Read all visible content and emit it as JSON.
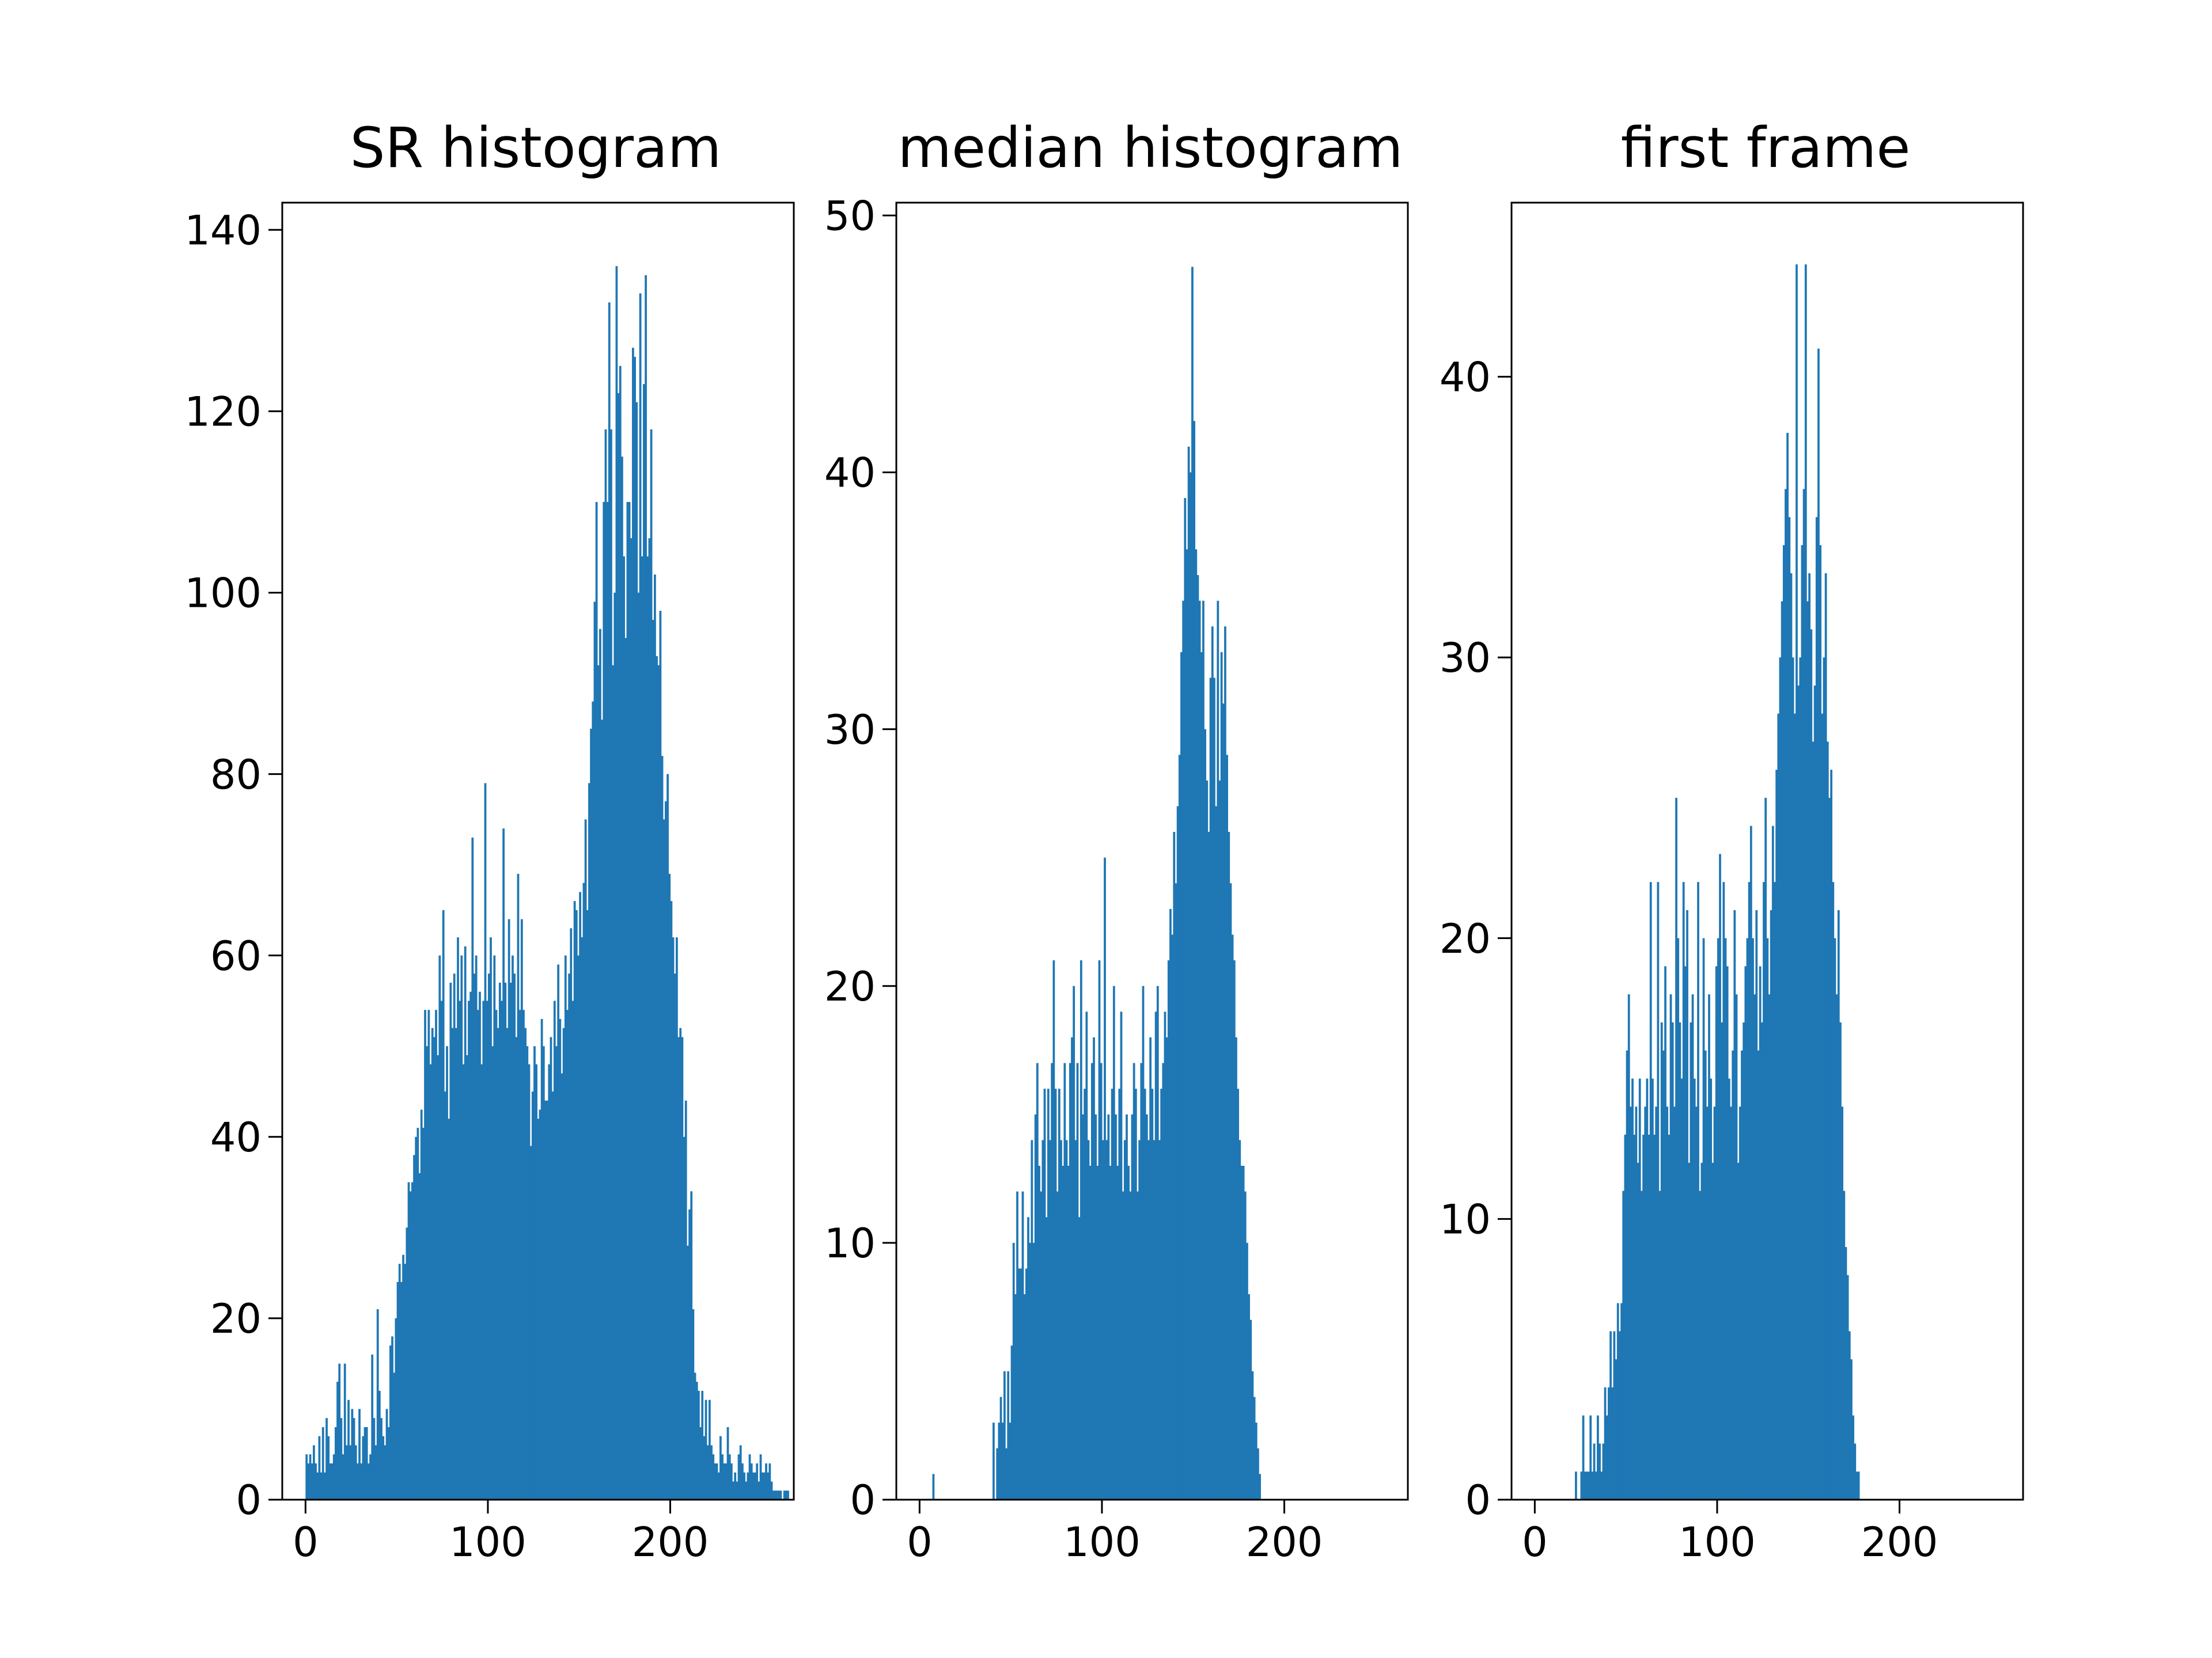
{
  "bar_color": "#1f77b4",
  "chart_data": [
    {
      "type": "bar",
      "title": "SR histogram",
      "xlabel": "",
      "ylabel": "",
      "xlim": [
        -12.75,
        267.75
      ],
      "ylim": [
        0,
        143
      ],
      "xticks": [
        0,
        100,
        200
      ],
      "yticks": [
        0,
        20,
        40,
        60,
        80,
        100,
        120,
        140
      ],
      "bins": {
        "start": 0,
        "width": 1
      },
      "values": [
        5,
        4,
        5,
        4,
        6,
        4,
        3,
        7,
        3,
        8,
        3,
        9,
        7,
        4,
        4,
        5,
        8,
        13,
        15,
        9,
        5,
        15,
        6,
        11,
        6,
        10,
        9,
        6,
        4,
        10,
        4,
        7,
        8,
        8,
        4,
        5,
        16,
        9,
        6,
        21,
        12,
        9,
        7,
        6,
        10,
        8,
        17,
        18,
        14,
        20,
        24,
        26,
        24,
        27,
        26,
        30,
        35,
        34,
        35,
        38,
        40,
        41,
        36,
        43,
        41,
        54,
        50,
        54,
        48,
        52,
        51,
        54,
        49,
        60,
        55,
        65,
        45,
        50,
        42,
        57,
        52,
        58,
        52,
        62,
        55,
        60,
        48,
        61,
        49,
        55,
        56,
        73,
        58,
        60,
        54,
        56,
        48,
        55,
        79,
        55,
        58,
        62,
        50,
        60,
        54,
        52,
        57,
        55,
        74,
        57,
        52,
        64,
        57,
        60,
        58,
        51,
        69,
        54,
        64,
        54,
        52,
        50,
        48,
        39,
        45,
        50,
        48,
        42,
        43,
        53,
        50,
        44,
        44,
        48,
        51,
        45,
        55,
        50,
        59,
        53,
        47,
        52,
        60,
        54,
        58,
        63,
        55,
        66,
        65,
        60,
        67,
        62,
        68,
        75,
        65,
        79,
        85,
        88,
        99,
        110,
        92,
        96,
        86,
        110,
        118,
        110,
        132,
        118,
        92,
        100,
        136,
        122,
        125,
        115,
        104,
        95,
        110,
        110,
        106,
        127,
        126,
        121,
        100,
        133,
        104,
        123,
        135,
        104,
        106,
        118,
        97,
        102,
        93,
        92,
        98,
        82,
        75,
        77,
        80,
        69,
        66,
        62,
        58,
        62,
        51,
        52,
        51,
        40,
        44,
        28,
        32,
        34,
        21,
        14,
        13,
        12,
        8,
        12,
        7,
        11,
        6,
        11,
        6,
        5,
        4,
        4,
        3,
        7,
        5,
        4,
        4,
        8,
        5,
        4,
        2,
        3,
        2,
        5,
        6,
        4,
        3,
        2,
        3,
        5,
        4,
        3,
        3,
        4,
        2,
        5,
        3,
        3,
        4,
        3,
        4,
        2,
        1,
        1,
        1,
        1,
        1,
        0,
        1,
        1,
        1,
        0
      ]
    },
    {
      "type": "bar",
      "title": "median histogram",
      "xlabel": "",
      "ylabel": "",
      "xlim": [
        -12.75,
        267.75
      ],
      "ylim": [
        0,
        50.5
      ],
      "xticks": [
        0,
        100,
        200
      ],
      "yticks": [
        0,
        10,
        20,
        30,
        40,
        50
      ],
      "bins": {
        "start": 0,
        "width": 1
      },
      "values": [
        0,
        0,
        0,
        0,
        0,
        0,
        0,
        1,
        0,
        0,
        0,
        0,
        0,
        0,
        0,
        0,
        0,
        0,
        0,
        0,
        0,
        0,
        0,
        0,
        0,
        0,
        0,
        0,
        0,
        0,
        0,
        0,
        0,
        0,
        0,
        0,
        0,
        0,
        0,
        0,
        3,
        0,
        2,
        3,
        4,
        3,
        5,
        2,
        5,
        3,
        6,
        10,
        8,
        12,
        9,
        9,
        12,
        8,
        9,
        11,
        10,
        14,
        10,
        15,
        17,
        13,
        12,
        14,
        16,
        11,
        16,
        14,
        17,
        21,
        16,
        12,
        16,
        14,
        13,
        17,
        14,
        13,
        17,
        18,
        20,
        14,
        17,
        11,
        21,
        15,
        16,
        19,
        14,
        13,
        17,
        18,
        15,
        13,
        21,
        17,
        14,
        25,
        14,
        15,
        13,
        16,
        20,
        15,
        13,
        16,
        19,
        12,
        14,
        15,
        13,
        12,
        15,
        17,
        16,
        12,
        14,
        17,
        20,
        16,
        15,
        14,
        18,
        16,
        14,
        19,
        20,
        14,
        16,
        17,
        19,
        18,
        21,
        23,
        22,
        26,
        24,
        27,
        29,
        33,
        35,
        39,
        37,
        41,
        40,
        48,
        42,
        37,
        36,
        35,
        33,
        35,
        30,
        28,
        26,
        32,
        34,
        32,
        27,
        35,
        28,
        33,
        31,
        34,
        29,
        26,
        24,
        22,
        21,
        18,
        16,
        14,
        13,
        13,
        12,
        10,
        8,
        7,
        5,
        4,
        3,
        2,
        1,
        0,
        0,
        0,
        0,
        0,
        0,
        0,
        0,
        0,
        0,
        0,
        0,
        0,
        0,
        0,
        0,
        0,
        0,
        0,
        0,
        0,
        0,
        0,
        0,
        0,
        0,
        0,
        0,
        0,
        0,
        0,
        0,
        0,
        0,
        0,
        0,
        0,
        0,
        0,
        0,
        0,
        0,
        0,
        0,
        0,
        0,
        0,
        0,
        0,
        0,
        0,
        0,
        0,
        0,
        0,
        0,
        0,
        0,
        0,
        0,
        0,
        0,
        0,
        0,
        0,
        0,
        0,
        0,
        0,
        0,
        0,
        0,
        0,
        0,
        0,
        0,
        0,
        0,
        0,
        0,
        0,
        0,
        0
      ]
    },
    {
      "type": "bar",
      "title": "first frame",
      "xlabel": "",
      "ylabel": "",
      "xlim": [
        -12.75,
        267.75
      ],
      "ylim": [
        0,
        46.2
      ],
      "xticks": [
        0,
        100,
        200
      ],
      "yticks": [
        0,
        10,
        20,
        30,
        40
      ],
      "bins": {
        "start": 0,
        "width": 1
      },
      "values": [
        0,
        0,
        0,
        0,
        0,
        0,
        0,
        0,
        0,
        0,
        0,
        0,
        0,
        0,
        0,
        0,
        0,
        0,
        0,
        0,
        0,
        0,
        1,
        0,
        0,
        1,
        3,
        1,
        1,
        1,
        3,
        1,
        2,
        1,
        3,
        2,
        1,
        2,
        4,
        3,
        4,
        6,
        4,
        6,
        5,
        7,
        6,
        7,
        11,
        13,
        16,
        18,
        14,
        15,
        13,
        14,
        12,
        15,
        11,
        13,
        14,
        15,
        13,
        22,
        15,
        13,
        14,
        22,
        11,
        17,
        16,
        19,
        14,
        13,
        18,
        17,
        14,
        25,
        20,
        17,
        15,
        22,
        19,
        21,
        12,
        17,
        18,
        15,
        14,
        22,
        11,
        12,
        20,
        16,
        14,
        18,
        15,
        12,
        14,
        19,
        20,
        23,
        17,
        22,
        20,
        19,
        15,
        14,
        16,
        21,
        18,
        12,
        14,
        16,
        17,
        19,
        20,
        22,
        24,
        20,
        18,
        21,
        16,
        19,
        17,
        22,
        25,
        20,
        18,
        21,
        24,
        22,
        26,
        28,
        30,
        32,
        34,
        36,
        38,
        35,
        33,
        30,
        28,
        44,
        29,
        30,
        34,
        36,
        44,
        32,
        33,
        31,
        27,
        29,
        35,
        41,
        34,
        28,
        30,
        33,
        27,
        25,
        26,
        22,
        20,
        18,
        21,
        17,
        14,
        11,
        9,
        8,
        6,
        5,
        3,
        2,
        1,
        1,
        0,
        0,
        0,
        0,
        0,
        0,
        0,
        0,
        0,
        0,
        0,
        0,
        0,
        0,
        0,
        0,
        0,
        0,
        0,
        0,
        0,
        0,
        0,
        0,
        0,
        0,
        0,
        0,
        0,
        0,
        0,
        0,
        0,
        0,
        0,
        0,
        0,
        0,
        0,
        0,
        0,
        0,
        0,
        0,
        0,
        0,
        0,
        0,
        0,
        0,
        0,
        0,
        0,
        0,
        0,
        0,
        0,
        0,
        0,
        0,
        0,
        0,
        0,
        0,
        0,
        0,
        0,
        0,
        0,
        0,
        0,
        0,
        0,
        0,
        0,
        0,
        0,
        0,
        0,
        0,
        0,
        0,
        0,
        0,
        0,
        0,
        0,
        0,
        0,
        0,
        0,
        0,
        0,
        0,
        0,
        0,
        0,
        0,
        0,
        0,
        0,
        0
      ]
    }
  ]
}
